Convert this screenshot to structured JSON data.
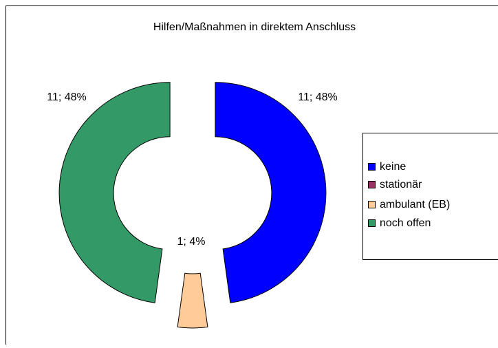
{
  "chart_data": {
    "type": "donut",
    "title": "Hilfen/Maßnahmen in direktem Anschluss",
    "categories": [
      "keine",
      "stationär",
      "ambulant (EB)",
      "noch offen"
    ],
    "values": [
      11,
      0,
      1,
      11
    ],
    "value_labels": [
      "11; 48%",
      null,
      "1; 4%",
      "11; 48%"
    ],
    "colors": [
      "#0000ff",
      "#993366",
      "#ffcc99",
      "#339966"
    ],
    "legend": "right"
  }
}
